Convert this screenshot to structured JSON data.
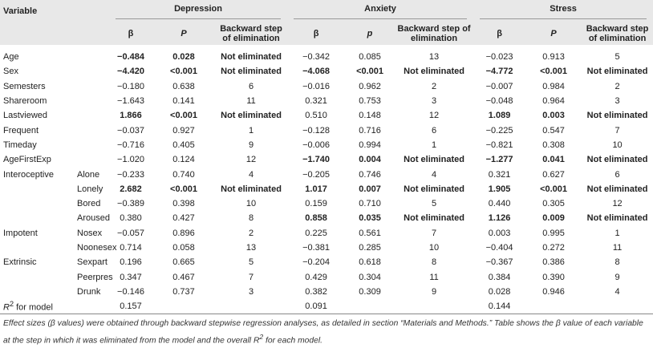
{
  "header": {
    "variable": "Variable",
    "groups": [
      {
        "name": "Depression",
        "columns": [
          "β",
          "P",
          "Backward step of elimination"
        ]
      },
      {
        "name": "Anxiety",
        "columns": [
          "β",
          "p",
          "Backward step of elimination"
        ]
      },
      {
        "name": "Stress",
        "columns": [
          "β",
          "P",
          "Backward step of elimination"
        ]
      }
    ]
  },
  "table": {
    "rows": [
      {
        "variable": "Age",
        "cells": [
          "−0.484",
          "0.028",
          "Not eliminated",
          "−0.342",
          "0.085",
          "13",
          "−0.023",
          "0.913",
          "5"
        ],
        "bold_columns": [
          0,
          1,
          2
        ]
      },
      {
        "variable": "Sex",
        "cells": [
          "−4.420",
          "<0.001",
          "Not eliminated",
          "−4.068",
          "<0.001",
          "Not eliminated",
          "−4.772",
          "<0.001",
          "Not eliminated"
        ],
        "bold_columns": [
          0,
          1,
          2,
          3,
          4,
          5,
          6,
          7,
          8
        ]
      },
      {
        "variable": "Semesters",
        "cells": [
          "−0.180",
          "0.638",
          "6",
          "−0.016",
          "0.962",
          "2",
          "−0.007",
          "0.984",
          "2"
        ],
        "bold_columns": []
      },
      {
        "variable": "Shareroom",
        "cells": [
          "−1.643",
          "0.141",
          "11",
          "0.321",
          "0.753",
          "3",
          "−0.048",
          "0.964",
          "3"
        ],
        "bold_columns": []
      },
      {
        "variable": "Lastviewed",
        "cells": [
          "1.866",
          "<0.001",
          "Not eliminated",
          "0.510",
          "0.148",
          "12",
          "1.089",
          "0.003",
          "Not eliminated"
        ],
        "bold_columns": [
          0,
          1,
          2,
          6,
          7,
          8
        ]
      },
      {
        "variable": "Frequent",
        "cells": [
          "−0.037",
          "0.927",
          "1",
          "−0.128",
          "0.716",
          "6",
          "−0.225",
          "0.547",
          "7"
        ],
        "bold_columns": []
      },
      {
        "variable": "Timeday",
        "cells": [
          "−0.716",
          "0.405",
          "9",
          "−0.006",
          "0.994",
          "1",
          "−0.821",
          "0.308",
          "10"
        ],
        "bold_columns": []
      },
      {
        "variable": "AgeFirstExp",
        "cells": [
          "−1.020",
          "0.124",
          "12",
          "−1.740",
          "0.004",
          "Not eliminated",
          "−1.277",
          "0.041",
          "Not eliminated"
        ],
        "bold_columns": [
          3,
          4,
          5,
          6,
          7,
          8
        ]
      },
      {
        "group": "Interoceptive",
        "variable": "Alone",
        "cells": [
          "−0.233",
          "0.740",
          "4",
          "−0.205",
          "0.746",
          "4",
          "0.321",
          "0.627",
          "6"
        ],
        "bold_columns": []
      },
      {
        "group": null,
        "variable": "Lonely",
        "cells": [
          "2.682",
          "<0.001",
          "Not eliminated",
          "1.017",
          "0.007",
          "Not eliminated",
          "1.905",
          "<0.001",
          "Not eliminated"
        ],
        "bold_columns": [
          0,
          1,
          2,
          3,
          4,
          5,
          6,
          7,
          8
        ]
      },
      {
        "group": null,
        "variable": "Bored",
        "cells": [
          "−0.389",
          "0.398",
          "10",
          "0.159",
          "0.710",
          "5",
          "0.440",
          "0.305",
          "12"
        ],
        "bold_columns": []
      },
      {
        "group": null,
        "variable": "Aroused",
        "cells": [
          "0.380",
          "0.427",
          "8",
          "0.858",
          "0.035",
          "Not eliminated",
          "1.126",
          "0.009",
          "Not eliminated"
        ],
        "bold_columns": [
          3,
          4,
          5,
          6,
          7,
          8
        ]
      },
      {
        "group": "Impotent",
        "variable": "Nosex",
        "cells": [
          "−0.057",
          "0.896",
          "2",
          "0.225",
          "0.561",
          "7",
          "0.003",
          "0.995",
          "1"
        ],
        "bold_columns": []
      },
      {
        "group": null,
        "variable": "Noonesex",
        "cells": [
          "0.714",
          "0.058",
          "13",
          "−0.381",
          "0.285",
          "10",
          "−0.404",
          "0.272",
          "11"
        ],
        "bold_columns": []
      },
      {
        "group": "Extrinsic",
        "variable": "Sexpart",
        "cells": [
          "0.196",
          "0.665",
          "5",
          "−0.204",
          "0.618",
          "8",
          "−0.367",
          "0.386",
          "8"
        ],
        "bold_columns": []
      },
      {
        "group": null,
        "variable": "Peerpres",
        "cells": [
          "0.347",
          "0.467",
          "7",
          "0.429",
          "0.304",
          "11",
          "0.384",
          "0.390",
          "9"
        ],
        "bold_columns": []
      },
      {
        "group": null,
        "variable": "Drunk",
        "cells": [
          "−0.146",
          "0.737",
          "3",
          "0.382",
          "0.309",
          "9",
          "0.028",
          "0.946",
          "4"
        ],
        "bold_columns": []
      }
    ],
    "r2_row": {
      "label": {
        "base": "R",
        "sup": "2",
        "rest": " for model"
      },
      "values": [
        "0.157",
        "0.091",
        "0.144"
      ]
    }
  },
  "footnote": {
    "before": "Effect sizes (β values) were obtained through backward stepwise regression analyses, as detailed in section “Materials and Methods.” Table shows the β value of each variable at the step in which it was eliminated from the model and the overall ",
    "base": "R",
    "sup": "2",
    "after": " for each model."
  }
}
